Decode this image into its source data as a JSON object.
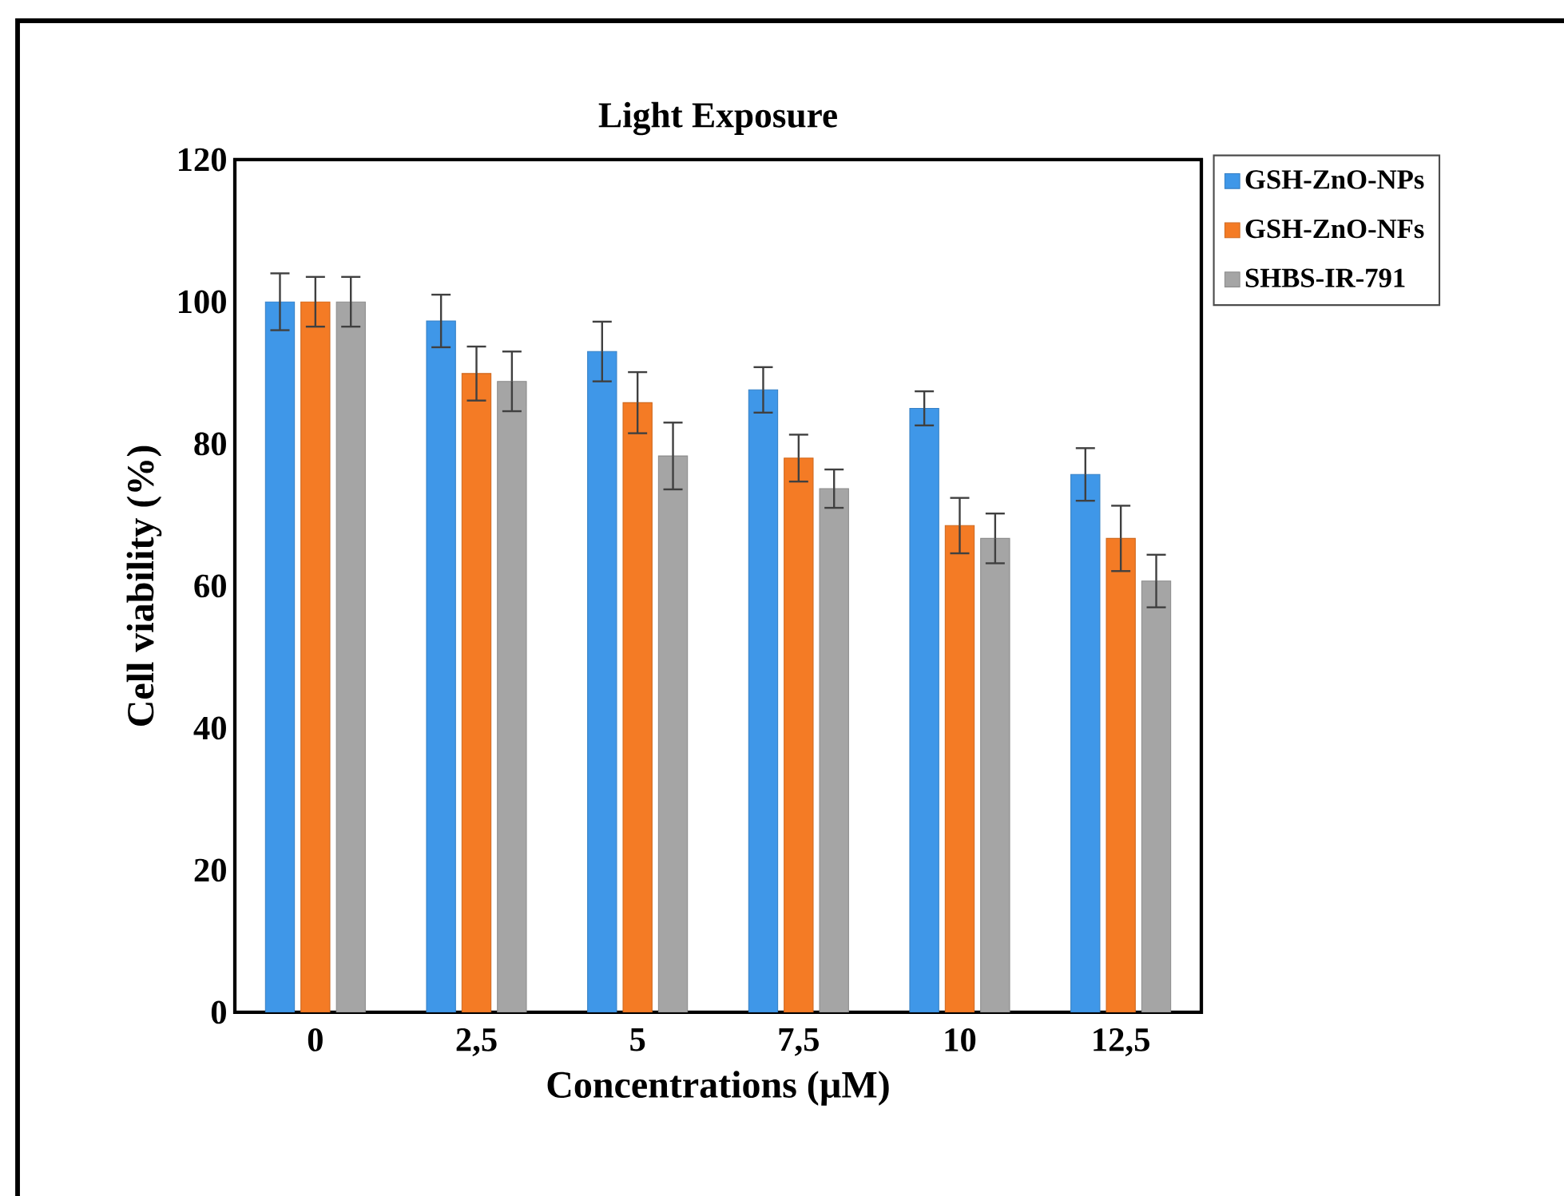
{
  "chart_data": {
    "type": "bar",
    "title": "Light Exposure",
    "xlabel": "Concentrations (µM)",
    "ylabel": "Cell viability (%)",
    "categories": [
      "0",
      "2,5",
      "5",
      "7,5",
      "10",
      "12,5"
    ],
    "series": [
      {
        "name": "GSH-ZnO-NPs",
        "color": "#3f97e8",
        "values": [
          100,
          97.3,
          93,
          87.6,
          85,
          75.7
        ],
        "errors": [
          4,
          3.7,
          4.2,
          3.2,
          2.4,
          3.7
        ]
      },
      {
        "name": "GSH-ZnO-NFs",
        "color": "#f47b25",
        "values": [
          100,
          89.9,
          85.8,
          78,
          68.5,
          66.7
        ],
        "errors": [
          3.5,
          3.8,
          4.3,
          3.3,
          3.9,
          4.6
        ]
      },
      {
        "name": "SHBS-IR-791",
        "color": "#a5a5a5",
        "values": [
          100,
          88.8,
          78.3,
          73.7,
          66.7,
          60.7
        ],
        "errors": [
          3.5,
          4.2,
          4.7,
          2.7,
          3.5,
          3.7
        ]
      }
    ],
    "ylim": [
      0,
      120
    ],
    "yticks": [
      0,
      20,
      40,
      60,
      80,
      100,
      120
    ],
    "grid": false,
    "legend": "top right"
  }
}
